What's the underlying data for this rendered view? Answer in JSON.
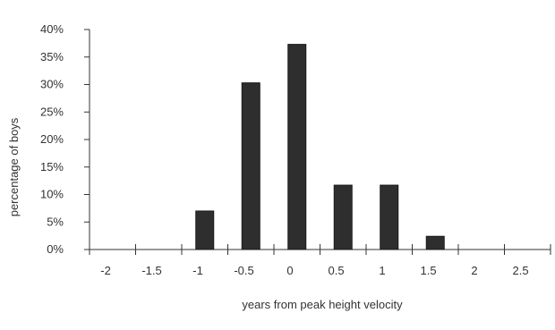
{
  "chart_data": {
    "type": "bar",
    "xlabel": "years from peak height velocity",
    "ylabel": "percentage of boys",
    "ylim": [
      0,
      40
    ],
    "grid": false,
    "y_ticks": [
      {
        "value": 0,
        "label": "0%"
      },
      {
        "value": 5,
        "label": "5%"
      },
      {
        "value": 10,
        "label": "10%"
      },
      {
        "value": 15,
        "label": "15%"
      },
      {
        "value": 20,
        "label": "20%"
      },
      {
        "value": 25,
        "label": "25%"
      },
      {
        "value": 30,
        "label": "30%"
      },
      {
        "value": 35,
        "label": "35%"
      },
      {
        "value": 40,
        "label": "40%"
      }
    ],
    "x_ticks": [
      "-2",
      "-1.5",
      "-1",
      "-0.5",
      "0",
      "0.5",
      "1",
      "1.5",
      "2",
      "2.5"
    ],
    "categories": [
      "-2",
      "-1.5",
      "-1",
      "-0.5",
      "0",
      "0.5",
      "1",
      "1.5",
      "2",
      "2.5"
    ],
    "values": [
      0,
      0,
      7,
      30.3,
      37.3,
      11.7,
      11.7,
      2.4,
      0,
      0
    ],
    "colors": {
      "bar": "#2e2e2e",
      "axis": "#333333",
      "text": "#333333"
    }
  }
}
